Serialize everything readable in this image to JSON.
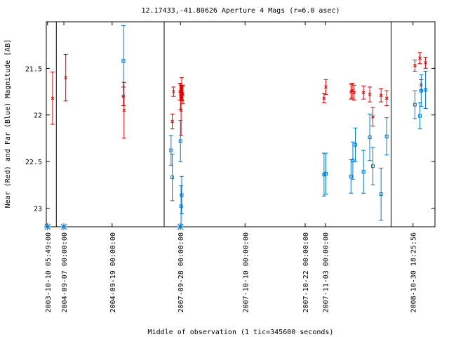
{
  "chart_data": {
    "type": "scatter",
    "title": "12.17433,-41.80626   Aperture 4 Mags (r=6.0 asec)",
    "xlabel": "Middle of observation (1 tic=345600 seconds)",
    "ylabel": "Near (Red) and Far (Blue) Magnitude [AB]",
    "y_inverted": true,
    "ylim": [
      23.2,
      21.0
    ],
    "yticks": [
      "21.5",
      "22",
      "22.5",
      "23"
    ],
    "xticks": [
      "2003-10-10 05:49:00",
      "2004-09-07 00:00:00",
      "2004-09-19 00:00:00",
      "2007-09-28 00:00:00",
      "2007-10-10 00:00:00",
      "2007-10-22 00:00:00",
      "2007-11-03 00:00:00",
      "2008-10-30 18:25:56"
    ],
    "grid": false,
    "colors": {
      "near": "#dd0000",
      "far": "#0077cc",
      "frame": "#000000"
    },
    "series": [
      {
        "role": "near",
        "marker": "x",
        "points": [
          {
            "x": 1.0,
            "y": 21.82,
            "err": 0.28
          },
          {
            "x": 3.1,
            "y": 21.6,
            "err": 0.25
          },
          {
            "x": 12.3,
            "y": 21.8,
            "err": 0.1
          },
          {
            "x": 12.4,
            "y": 21.95,
            "err": 0.3
          },
          {
            "x": 20.1,
            "y": 22.07,
            "err": 0.08
          },
          {
            "x": 20.3,
            "y": 21.75,
            "err": 0.05
          },
          {
            "x": 21.3,
            "y": 21.75,
            "err": 0.09
          },
          {
            "x": 21.4,
            "y": 21.8,
            "err": 0.14
          },
          {
            "x": 21.5,
            "y": 21.95,
            "err": 0.27
          },
          {
            "x": 21.6,
            "y": 21.72,
            "err": 0.12
          },
          {
            "x": 21.7,
            "y": 21.77,
            "err": 0.08
          },
          {
            "x": 21.8,
            "y": 21.78,
            "err": 0.1
          },
          {
            "x": 44.3,
            "y": 21.82,
            "err": 0.05
          },
          {
            "x": 44.6,
            "y": 21.7,
            "err": 0.08
          },
          {
            "x": 48.6,
            "y": 21.75,
            "err": 0.08
          },
          {
            "x": 48.8,
            "y": 21.74,
            "err": 0.08
          },
          {
            "x": 49.1,
            "y": 21.76,
            "err": 0.08
          },
          {
            "x": 50.6,
            "y": 21.76,
            "err": 0.07
          },
          {
            "x": 51.6,
            "y": 21.78,
            "err": 0.08
          },
          {
            "x": 52.1,
            "y": 22.02,
            "err": 0.1
          },
          {
            "x": 53.4,
            "y": 21.79,
            "err": 0.07
          },
          {
            "x": 54.3,
            "y": 21.82,
            "err": 0.08
          },
          {
            "x": 58.8,
            "y": 21.47,
            "err": 0.06
          },
          {
            "x": 59.6,
            "y": 21.39,
            "err": 0.06
          },
          {
            "x": 59.8,
            "y": 21.68,
            "err": 0.06
          },
          {
            "x": 60.5,
            "y": 21.44,
            "err": 0.06
          }
        ]
      },
      {
        "role": "far",
        "marker": "square",
        "points": [
          {
            "x": 12.3,
            "y": 21.42,
            "err": 0.38
          },
          {
            "x": 19.9,
            "y": 22.38,
            "err": 0.16
          },
          {
            "x": 20.1,
            "y": 22.67,
            "err": 0.25
          },
          {
            "x": 21.4,
            "y": 22.28,
            "err": 0.22
          },
          {
            "x": 21.5,
            "y": 22.98,
            "err": 0.22
          },
          {
            "x": 21.6,
            "y": 22.86,
            "err": 0.2
          },
          {
            "x": 44.3,
            "y": 22.64,
            "err": 0.23
          },
          {
            "x": 44.6,
            "y": 22.63,
            "err": 0.22
          },
          {
            "x": 48.6,
            "y": 22.66,
            "err": 0.18
          },
          {
            "x": 48.9,
            "y": 22.49,
            "err": 0.2
          },
          {
            "x": 49.3,
            "y": 22.32,
            "err": 0.18
          },
          {
            "x": 50.6,
            "y": 22.61,
            "err": 0.23
          },
          {
            "x": 51.6,
            "y": 22.24,
            "err": 0.25
          },
          {
            "x": 52.1,
            "y": 22.55,
            "err": 0.2
          },
          {
            "x": 53.4,
            "y": 22.85,
            "err": 0.28
          },
          {
            "x": 54.3,
            "y": 22.23,
            "err": 0.2
          },
          {
            "x": 58.8,
            "y": 21.89,
            "err": 0.15
          },
          {
            "x": 59.6,
            "y": 22.01,
            "err": 0.14
          },
          {
            "x": 59.8,
            "y": 21.74,
            "err": 0.17
          },
          {
            "x": 60.5,
            "y": 21.73,
            "err": 0.2
          }
        ]
      },
      {
        "role": "upper-limit",
        "marker": "asterisk",
        "points": [
          {
            "x": 0.2,
            "y": 23.2
          },
          {
            "x": 2.8,
            "y": 23.2
          },
          {
            "x": 21.4,
            "y": 23.2
          }
        ]
      }
    ],
    "xlim": [
      0,
      62
    ],
    "xtick_positions": [
      0.2,
      2.8,
      10.5,
      21.4,
      31.7,
      41.3,
      44.5,
      58.5
    ],
    "gap_dividers": [
      1.6,
      18.8,
      55.0
    ]
  }
}
